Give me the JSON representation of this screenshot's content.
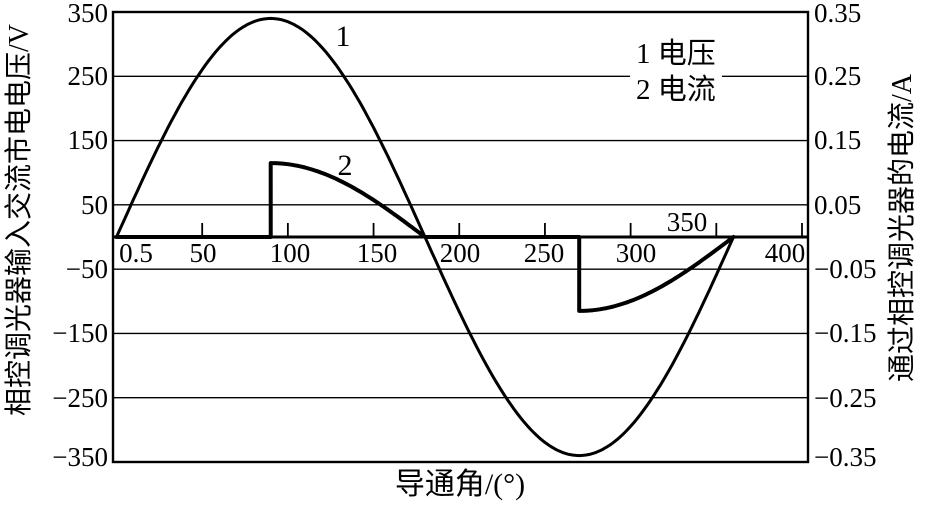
{
  "chart_data": {
    "type": "line",
    "description": "Voltage and current waveforms of a phase-controlled (TRIAC) dimmer, firing angle 90°",
    "x_axis": {
      "label": "导通角/(°)",
      "range": [
        0,
        400
      ],
      "tick_labels": [
        "0.5",
        "50",
        "100",
        "150",
        "200",
        "250",
        "300",
        "350",
        "400"
      ],
      "tick_values": [
        0.5,
        50,
        100,
        150,
        200,
        250,
        300,
        350,
        400
      ]
    },
    "left_y_axis": {
      "label": "相控调光器输入交流市电电压/V",
      "range": [
        -350,
        350
      ],
      "tick_labels": [
        "350",
        "250",
        "150",
        "50",
        "−50",
        "−150",
        "−250",
        "−350"
      ],
      "tick_values": [
        350,
        250,
        150,
        50,
        -50,
        -150,
        -250,
        -350
      ]
    },
    "right_y_axis": {
      "label": "通过相控调光器的电流/A",
      "range": [
        -0.35,
        0.35
      ],
      "tick_labels": [
        "0.35",
        "0.25",
        "0.15",
        "0.05",
        "−0.05",
        "−0.15",
        "−0.25",
        "−0.35"
      ],
      "tick_values": [
        0.35,
        0.25,
        0.15,
        0.05,
        -0.05,
        -0.15,
        -0.25,
        -0.35
      ]
    },
    "grid": true,
    "legend_position": "top-right",
    "legend": {
      "items": [
        {
          "label": "1 电压"
        },
        {
          "label": "2 电流"
        }
      ]
    },
    "series": [
      {
        "marker": "1",
        "name": "1 电压",
        "axis": "left",
        "unit": "V",
        "waveform": "sine",
        "amplitude": 340,
        "theta_deg_range": [
          0,
          360
        ],
        "key_points": [
          [
            0,
            0
          ],
          [
            90,
            340
          ],
          [
            180,
            0
          ],
          [
            270,
            -340
          ],
          [
            360,
            0
          ]
        ]
      },
      {
        "marker": "2",
        "name": "2 电流",
        "axis": "right",
        "unit": "A",
        "waveform": "phase_controlled_sine",
        "amplitude": 0.115,
        "firing_angle_deg": 90,
        "conduction_intervals_deg": [
          [
            90,
            180
          ],
          [
            270,
            360
          ]
        ],
        "key_points": [
          [
            0,
            0
          ],
          [
            90,
            0
          ],
          [
            90,
            0.115
          ],
          [
            135,
            0.081
          ],
          [
            180,
            0
          ],
          [
            270,
            0
          ],
          [
            270,
            -0.115
          ],
          [
            315,
            -0.081
          ],
          [
            360,
            0
          ]
        ]
      }
    ],
    "colors": {
      "line": "#000000",
      "background": "#ffffff"
    }
  }
}
